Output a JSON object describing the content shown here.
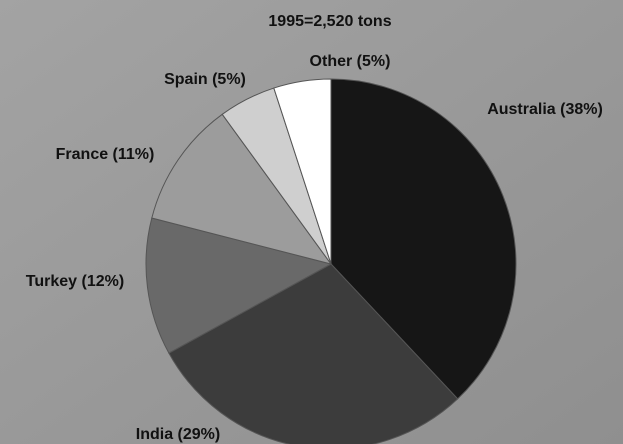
{
  "chart_data": {
    "type": "pie",
    "title": "1995=2,520 tons",
    "categories": [
      "Australia (38%)",
      "India (29%)",
      "Turkey (12%)",
      "France (11%)",
      "Spain (5%)",
      "Other (5%)"
    ],
    "values": [
      38,
      29,
      12,
      11,
      5,
      5
    ],
    "colors": [
      "#161616",
      "#3c3c3c",
      "#696969",
      "#9c9c9c",
      "#cfcfcf",
      "#ffffff"
    ]
  }
}
